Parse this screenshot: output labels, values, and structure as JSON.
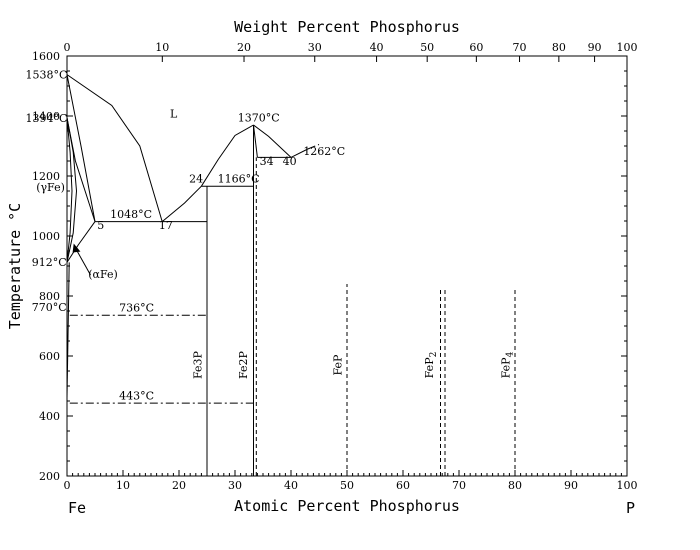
{
  "titles": {
    "top_axis": "Weight Percent Phosphorus",
    "bottom_axis": "Atomic Percent Phosphorus",
    "y_axis": "Temperature °C",
    "left_element": "Fe",
    "right_element": "P"
  },
  "ticks": {
    "bottom": [
      "0",
      "10",
      "20",
      "30",
      "40",
      "50",
      "60",
      "70",
      "80",
      "90",
      "100"
    ],
    "top": [
      {
        "w": 0,
        "at": 0,
        "label": "0"
      },
      {
        "w": 10,
        "at": 17.02,
        "label": "10"
      },
      {
        "w": 20,
        "at": 31.61,
        "label": "20"
      },
      {
        "w": 30,
        "at": 44.24,
        "label": "30"
      },
      {
        "w": 40,
        "at": 55.28,
        "label": "40"
      },
      {
        "w": 50,
        "at": 64.32,
        "label": "50"
      },
      {
        "w": 60,
        "at": 73.1,
        "label": "60"
      },
      {
        "w": 70,
        "at": 80.81,
        "label": "70"
      },
      {
        "w": 80,
        "at": 87.83,
        "label": "80"
      },
      {
        "w": 90,
        "at": 94.21,
        "label": "90"
      },
      {
        "w": 100,
        "at": 100,
        "label": "100"
      }
    ],
    "left": [
      "200",
      "400",
      "600",
      "800",
      "1000",
      "1200",
      "1400",
      "1600"
    ]
  },
  "axes": {
    "x_min": 0,
    "x_max": 100,
    "y_min": 200,
    "y_max": 1600
  },
  "lines": {
    "solid": [
      [
        [
          0,
          1538
        ],
        [
          8,
          1435
        ],
        [
          13,
          1300
        ],
        [
          17,
          1048
        ]
      ],
      [
        [
          17,
          1048
        ],
        [
          21,
          1110
        ],
        [
          24,
          1166
        ]
      ],
      [
        [
          24,
          1166
        ],
        [
          27,
          1255
        ],
        [
          30,
          1335
        ],
        [
          33.3,
          1370
        ]
      ],
      [
        [
          33.3,
          1370
        ],
        [
          36,
          1332
        ],
        [
          40,
          1262
        ]
      ],
      [
        [
          40,
          1262
        ],
        [
          43,
          1290
        ]
      ],
      [
        [
          34,
          1262
        ],
        [
          40,
          1262
        ]
      ],
      [
        [
          34,
          1262
        ],
        [
          33.3,
          1370
        ]
      ],
      [
        [
          5,
          1048
        ],
        [
          25,
          1048
        ]
      ],
      [
        [
          24,
          1166
        ],
        [
          33.3,
          1166
        ]
      ],
      [
        [
          25,
          200
        ],
        [
          25,
          1166
        ]
      ],
      [
        [
          33.3,
          200
        ],
        [
          33.3,
          1370
        ]
      ],
      [
        [
          0,
          1538
        ],
        [
          2.5,
          1300
        ],
        [
          5,
          1048
        ]
      ],
      [
        [
          0,
          1394
        ],
        [
          1.5,
          1250
        ],
        [
          5,
          1048
        ]
      ],
      [
        [
          0,
          1394
        ],
        [
          0.55,
          1280
        ],
        [
          0.9,
          1150
        ],
        [
          0.55,
          1010
        ],
        [
          0,
          912
        ]
      ],
      [
        [
          0,
          1394
        ],
        [
          1.1,
          1280
        ],
        [
          1.7,
          1150
        ],
        [
          1.1,
          1010
        ],
        [
          0,
          912
        ]
      ],
      [
        [
          0,
          912
        ],
        [
          2,
          970
        ],
        [
          5,
          1048
        ]
      ],
      [
        [
          0,
          460
        ],
        [
          0.4,
          912
        ]
      ]
    ],
    "dashed": [
      [
        [
          33.8,
          200
        ],
        [
          33.8,
          1262
        ]
      ],
      [
        [
          50,
          200
        ],
        [
          50,
          840
        ]
      ],
      [
        [
          66.7,
          200
        ],
        [
          66.7,
          820
        ]
      ],
      [
        [
          67.5,
          200
        ],
        [
          67.5,
          820
        ]
      ],
      [
        [
          80,
          200
        ],
        [
          80,
          820
        ]
      ]
    ],
    "dashdot": [
      [
        [
          0.5,
          736
        ],
        [
          25,
          736
        ]
      ],
      [
        [
          0.5,
          443
        ],
        [
          33.3,
          443
        ]
      ],
      [
        [
          43,
          1290
        ],
        [
          45,
          1305
        ]
      ]
    ]
  },
  "labels": [
    {
      "text": "1538°C",
      "x": -7.4,
      "y": 1525
    },
    {
      "text": "1394°C",
      "x": -7.4,
      "y": 1380
    },
    {
      "text": "(γFe)",
      "x": -5.5,
      "y": 1150
    },
    {
      "text": "912°C",
      "x": -6.3,
      "y": 900
    },
    {
      "text": "770°C",
      "x": -6.3,
      "y": 750
    },
    {
      "text": "(αFe)",
      "x": 3.8,
      "y": 860
    },
    {
      "text": "L",
      "x": 18.4,
      "y": 1395
    },
    {
      "text": "1370°C",
      "x": 30.5,
      "y": 1382
    },
    {
      "text": "1262°C",
      "x": 42.2,
      "y": 1270
    },
    {
      "text": "34",
      "x": 34.4,
      "y": 1237
    },
    {
      "text": "40",
      "x": 38.5,
      "y": 1237
    },
    {
      "text": "24",
      "x": 21.8,
      "y": 1178
    },
    {
      "text": "1166°C",
      "x": 26.9,
      "y": 1178
    },
    {
      "text": "1048°C",
      "x": 7.7,
      "y": 1060
    },
    {
      "text": "5",
      "x": 5.4,
      "y": 1024
    },
    {
      "text": "17",
      "x": 16.4,
      "y": 1024
    },
    {
      "text": "736°C",
      "x": 9.3,
      "y": 748
    },
    {
      "text": "443°C",
      "x": 9.3,
      "y": 455
    }
  ],
  "compounds": [
    {
      "formula": "Fe3P",
      "x": 24.0,
      "y": 570
    },
    {
      "formula": "Fe2P",
      "x": 32.1,
      "y": 570
    },
    {
      "formula": "FeP",
      "x": 49.0,
      "y": 570
    },
    {
      "formula": "FeP2",
      "x": 65.4,
      "y": 570
    },
    {
      "formula": "FeP4",
      "x": 79.0,
      "y": 570
    }
  ]
}
